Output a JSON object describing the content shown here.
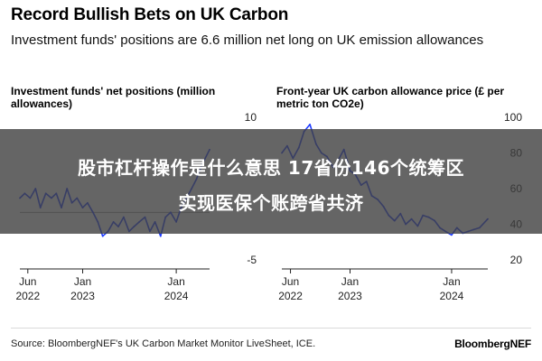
{
  "header": {
    "title": "Record Bullish Bets on UK Carbon",
    "subtitle": "Investment funds' positions are 6.6 million net long on UK emission allowances"
  },
  "overlay": {
    "line1": "股市杠杆操作是什么意思 17省份146个统筹区",
    "line2": "实现医保个账跨省共济"
  },
  "footer": {
    "source": "Source: BloombergNEF's UK Carbon Market Monitor LiveSheet, ICE.",
    "brand": "BloombergNEF"
  },
  "chart_data": [
    {
      "type": "line",
      "title": "Investment funds' net positions (million allowances)",
      "xlabel": "",
      "ylabel": "",
      "ylim": [
        -5,
        10
      ],
      "yticks": [
        -5,
        10
      ],
      "yticks_hidden": [
        0,
        5
      ],
      "xlim": [
        "2022-05-01",
        "2024-05-10"
      ],
      "xticks": [
        {
          "date": "2022-06-01",
          "label": "Jun",
          "sub": "2022"
        },
        {
          "date": "2023-01-01",
          "label": "Jan",
          "sub": "2023"
        },
        {
          "date": "2024-01-01",
          "label": "Jan",
          "sub": "2024"
        }
      ],
      "grid": false,
      "color": "#1f3cff",
      "series": [
        {
          "x": [
            "2022-05-01",
            "2022-05-20",
            "2022-06-10",
            "2022-07-01",
            "2022-07-20",
            "2022-08-10",
            "2022-09-01",
            "2022-09-20",
            "2022-10-10",
            "2022-11-01",
            "2022-11-20",
            "2022-12-10",
            "2023-01-01",
            "2023-01-20",
            "2023-02-10",
            "2023-03-01",
            "2023-03-20",
            "2023-04-10",
            "2023-05-01",
            "2023-05-20",
            "2023-06-10",
            "2023-07-01",
            "2023-07-20",
            "2023-08-10",
            "2023-09-01",
            "2023-09-20",
            "2023-10-10",
            "2023-11-01",
            "2023-11-20",
            "2023-12-10",
            "2024-01-01",
            "2024-01-20",
            "2024-02-10",
            "2024-03-01",
            "2024-03-20",
            "2024-04-10",
            "2024-05-10"
          ],
          "values": [
            1.5,
            2.0,
            1.5,
            2.5,
            0.5,
            2.0,
            1.5,
            2.0,
            0.5,
            2.5,
            1.0,
            1.5,
            0.5,
            1.0,
            0.0,
            -1.0,
            -2.5,
            -2.0,
            -1.0,
            -1.5,
            -0.5,
            -2.0,
            -1.5,
            -1.0,
            -0.5,
            -2.0,
            -1.0,
            -2.5,
            -0.5,
            0.0,
            -1.0,
            0.5,
            1.5,
            2.5,
            3.5,
            5.0,
            6.6
          ]
        }
      ]
    },
    {
      "type": "line",
      "title": "Front-year UK carbon allowance price (£ per metric ton CO2e)",
      "xlabel": "",
      "ylabel": "",
      "ylim": [
        20,
        100
      ],
      "yticks": [
        20,
        40,
        60,
        80,
        100
      ],
      "xlim": [
        "2022-05-01",
        "2024-05-10"
      ],
      "xticks": [
        {
          "date": "2022-06-01",
          "label": "Jun",
          "sub": "2022"
        },
        {
          "date": "2023-01-01",
          "label": "Jan",
          "sub": "2023"
        },
        {
          "date": "2024-01-01",
          "label": "Jan",
          "sub": "2024"
        }
      ],
      "grid": false,
      "color": "#1f3cff",
      "series": [
        {
          "x": [
            "2022-05-01",
            "2022-05-20",
            "2022-06-10",
            "2022-07-01",
            "2022-07-20",
            "2022-08-10",
            "2022-09-01",
            "2022-09-20",
            "2022-10-10",
            "2022-11-01",
            "2022-11-20",
            "2022-12-10",
            "2023-01-01",
            "2023-01-20",
            "2023-02-10",
            "2023-03-01",
            "2023-03-20",
            "2023-04-10",
            "2023-05-01",
            "2023-05-20",
            "2023-06-10",
            "2023-07-01",
            "2023-07-20",
            "2023-08-10",
            "2023-09-01",
            "2023-09-20",
            "2023-10-10",
            "2023-11-01",
            "2023-11-20",
            "2023-12-10",
            "2024-01-01",
            "2024-01-20",
            "2024-02-10",
            "2024-03-01",
            "2024-03-20",
            "2024-04-10",
            "2024-05-10"
          ],
          "values": [
            80,
            84,
            77,
            83,
            92,
            96,
            85,
            80,
            78,
            72,
            76,
            82,
            70,
            68,
            62,
            64,
            56,
            54,
            50,
            45,
            42,
            46,
            40,
            43,
            39,
            45,
            44,
            42,
            38,
            36,
            34,
            38,
            35,
            36,
            37,
            38,
            43
          ]
        }
      ]
    }
  ]
}
